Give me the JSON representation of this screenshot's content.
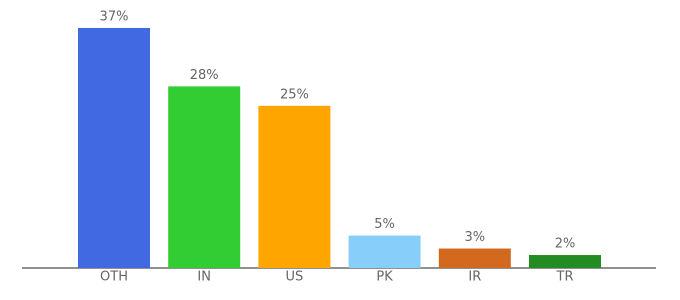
{
  "chart_data": {
    "type": "bar",
    "categories": [
      "OTH",
      "IN",
      "US",
      "PK",
      "IR",
      "TR"
    ],
    "values": [
      37,
      28,
      25,
      5,
      3,
      2
    ],
    "value_labels": [
      "37%",
      "28%",
      "25%",
      "5%",
      "3%",
      "2%"
    ],
    "colors": [
      "#4169e1",
      "#32cd32",
      "#ffa500",
      "#87cefa",
      "#d2691e",
      "#228b22"
    ]
  }
}
